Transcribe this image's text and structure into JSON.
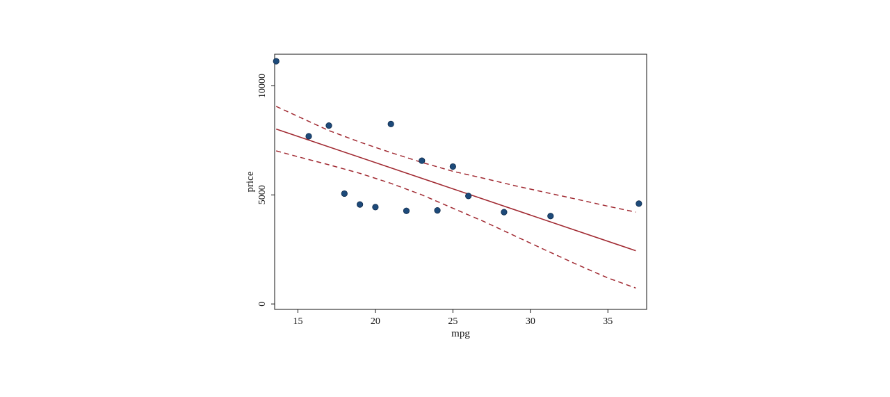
{
  "chart_data": {
    "type": "scatter",
    "title": "",
    "xlabel": "mpg",
    "ylabel": "price",
    "xlim": [
      13.5,
      37.5
    ],
    "ylim": [
      -250,
      11450
    ],
    "x_ticks": [
      15,
      20,
      25,
      30,
      35
    ],
    "y_ticks": [
      0,
      5000,
      10000
    ],
    "x_tick_labels": [
      "15",
      "20",
      "25",
      "30",
      "35"
    ],
    "y_tick_labels": [
      "0",
      "5000",
      "10000"
    ],
    "grid": false,
    "legend": "none",
    "points": [
      {
        "x": 13.6,
        "y": 11130
      },
      {
        "x": 15.7,
        "y": 7690
      },
      {
        "x": 17.0,
        "y": 8180
      },
      {
        "x": 18.0,
        "y": 5060
      },
      {
        "x": 19.0,
        "y": 4560
      },
      {
        "x": 20.0,
        "y": 4440
      },
      {
        "x": 21.0,
        "y": 8250
      },
      {
        "x": 22.0,
        "y": 4270
      },
      {
        "x": 23.0,
        "y": 6570
      },
      {
        "x": 24.0,
        "y": 4290
      },
      {
        "x": 25.0,
        "y": 6300
      },
      {
        "x": 26.0,
        "y": 4950
      },
      {
        "x": 28.3,
        "y": 4210
      },
      {
        "x": 31.3,
        "y": 4030
      },
      {
        "x": 37.0,
        "y": 4600
      }
    ],
    "fit_line": {
      "x": [
        13.6,
        36.8
      ],
      "y": [
        8020,
        2440
      ]
    },
    "ci_upper": {
      "x": [
        13.6,
        15,
        17,
        19,
        21,
        23,
        25,
        27,
        29,
        31,
        33,
        35,
        36.8
      ],
      "y": [
        9060,
        8600,
        7950,
        7420,
        6940,
        6490,
        6080,
        5760,
        5420,
        5110,
        4800,
        4480,
        4210
      ]
    },
    "ci_lower": {
      "x": [
        13.6,
        15,
        17,
        19,
        21,
        23,
        25,
        27,
        29,
        31,
        33,
        35,
        36.8
      ],
      "y": [
        7020,
        6750,
        6380,
        5990,
        5530,
        5000,
        4390,
        3780,
        3120,
        2460,
        1810,
        1190,
        730
      ]
    },
    "colors": {
      "points": "#1d4a7a",
      "points_stroke": "#0f2a4a",
      "fit": "#a12a32",
      "ci": "#a12a32",
      "axis": "#111111",
      "background": "#ffffff"
    }
  }
}
